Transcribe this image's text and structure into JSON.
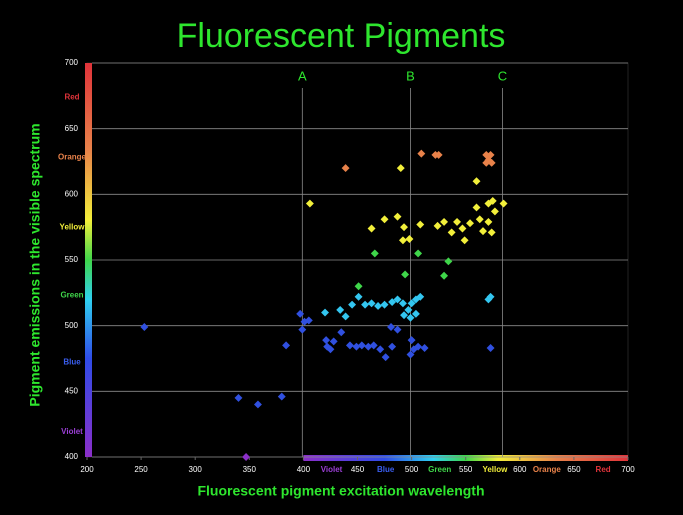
{
  "chart_data": {
    "type": "scatter",
    "title": "Fluorescent Pigments",
    "xlabel": "Fluorescent pigment excitation wavelength",
    "ylabel": "Pigment emissions in the  visible spectrum",
    "xlim": [
      200,
      700
    ],
    "ylim": [
      400,
      700
    ],
    "xticks": [
      200,
      250,
      300,
      350,
      400,
      450,
      500,
      550,
      600,
      650,
      700
    ],
    "yticks": [
      400,
      450,
      500,
      550,
      600,
      650,
      700
    ],
    "grid": true,
    "spectrum_range": [
      400,
      700
    ],
    "annotations": [
      {
        "text": "A",
        "x": 399
      },
      {
        "text": "B",
        "x": 499
      },
      {
        "text": "C",
        "x": 584
      }
    ],
    "y_spectrum_labels": [
      {
        "value": 674,
        "label": "Red",
        "color": "#e0333a"
      },
      {
        "value": 628,
        "label": "Orange",
        "color": "#e8824a"
      },
      {
        "value": 575,
        "label": "Yellow",
        "color": "#f2ef3a"
      },
      {
        "value": 523,
        "label": "Green",
        "color": "#3fd64a"
      },
      {
        "value": 472,
        "label": "Blue",
        "color": "#3a5ef0"
      },
      {
        "value": 419,
        "label": "Violet",
        "color": "#9b3fd6"
      }
    ],
    "x_spectrum_labels": [
      {
        "value": 426,
        "label": "Violet",
        "color": "#9b3fd6"
      },
      {
        "value": 476,
        "label": "Blue",
        "color": "#3a5ef0"
      },
      {
        "value": 526,
        "label": "Green",
        "color": "#3fd64a"
      },
      {
        "value": 577,
        "label": "Yellow",
        "color": "#f2ef3a"
      },
      {
        "value": 625,
        "label": "Orange",
        "color": "#e8824a"
      },
      {
        "value": 677,
        "label": "Red",
        "color": "#e0333a"
      }
    ],
    "series": [
      {
        "color": "#8b2fc9",
        "x": [
          347
        ],
        "values": [
          400
        ]
      },
      {
        "color": "#3050e0",
        "x": [
          253,
          340,
          358,
          380,
          384,
          397,
          401,
          405,
          399,
          421,
          422,
          428,
          425,
          435,
          443,
          449,
          454,
          460,
          465,
          471,
          476,
          482,
          487,
          481,
          500,
          502,
          506,
          512,
          499,
          573
        ],
        "values": [
          499,
          445,
          440,
          446,
          485,
          509,
          503,
          504,
          497,
          489,
          484,
          488,
          482,
          495,
          485,
          484,
          485,
          484,
          485,
          482,
          476,
          484,
          497,
          499,
          489,
          482,
          484,
          483,
          478,
          483
        ]
      },
      {
        "color": "#33c6f0",
        "x": [
          420,
          434,
          439,
          445,
          451,
          457,
          463,
          469,
          475,
          482,
          487,
          492,
          497,
          500,
          504,
          508,
          493,
          499,
          504,
          571,
          573
        ],
        "values": [
          510,
          512,
          507,
          516,
          522,
          516,
          517,
          515,
          516,
          518,
          520,
          517,
          512,
          517,
          520,
          522,
          508,
          506,
          509,
          520,
          522
        ]
      },
      {
        "color": "#3fd64a",
        "x": [
          451,
          466,
          494,
          506,
          530,
          534
        ],
        "values": [
          530,
          555,
          539,
          555,
          538,
          549
        ]
      },
      {
        "color": "#f2ef3a",
        "x": [
          406,
          463,
          475,
          487,
          493,
          498,
          492,
          508,
          524,
          530,
          537,
          542,
          554,
          563,
          566,
          574,
          571,
          577,
          571,
          575,
          585,
          560,
          549,
          547,
          560,
          490
        ],
        "values": [
          593,
          574,
          581,
          583,
          575,
          566,
          565,
          577,
          576,
          579,
          571,
          579,
          578,
          581,
          572,
          571,
          579,
          587,
          593,
          595,
          593,
          610,
          565,
          574,
          590,
          620
        ]
      },
      {
        "color": "#e8824a",
        "x": [
          439,
          509,
          522,
          525,
          569,
          573,
          569,
          574,
          571
        ],
        "values": [
          620,
          631,
          630,
          630,
          630,
          630,
          624,
          624,
          626
        ]
      }
    ]
  }
}
